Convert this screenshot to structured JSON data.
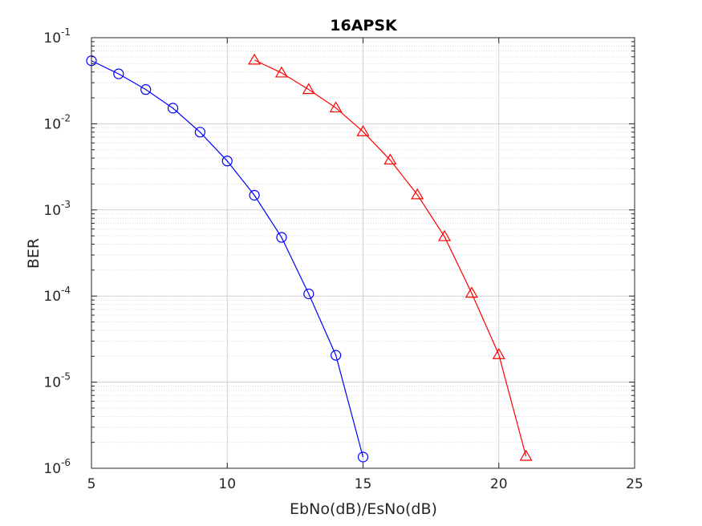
{
  "chart_data": {
    "type": "line",
    "title": "16APSK",
    "xlabel": "EbNo(dB)/EsNo(dB)",
    "ylabel": "BER",
    "xlim": [
      5,
      25
    ],
    "ylim": [
      1e-06,
      0.1
    ],
    "yscale": "log",
    "grid": true,
    "x_ticks": [
      "5",
      "10",
      "15",
      "20",
      "25"
    ],
    "y_ticks": [
      {
        "base": "10",
        "exp": "-6"
      },
      {
        "base": "10",
        "exp": "-5"
      },
      {
        "base": "10",
        "exp": "-4"
      },
      {
        "base": "10",
        "exp": "-3"
      },
      {
        "base": "10",
        "exp": "-2"
      },
      {
        "base": "10",
        "exp": "-1"
      }
    ],
    "series": [
      {
        "color": "#0000ff",
        "marker": "circle",
        "x": [
          5,
          6,
          7,
          8,
          9,
          10,
          11,
          12,
          13,
          14,
          15
        ],
        "y": [
          0.054,
          0.038,
          0.025,
          0.0152,
          0.008,
          0.0037,
          0.00148,
          0.00048,
          0.000106,
          2.05e-05,
          1.35e-06
        ]
      },
      {
        "color": "#ff0000",
        "marker": "triangle",
        "x": [
          11,
          12,
          13,
          14,
          15,
          16,
          17,
          18,
          19,
          20,
          21
        ],
        "y": [
          0.055,
          0.039,
          0.025,
          0.0153,
          0.0081,
          0.0038,
          0.0015,
          0.00049,
          0.000108,
          2.09e-05,
          1.38e-06
        ]
      }
    ]
  }
}
